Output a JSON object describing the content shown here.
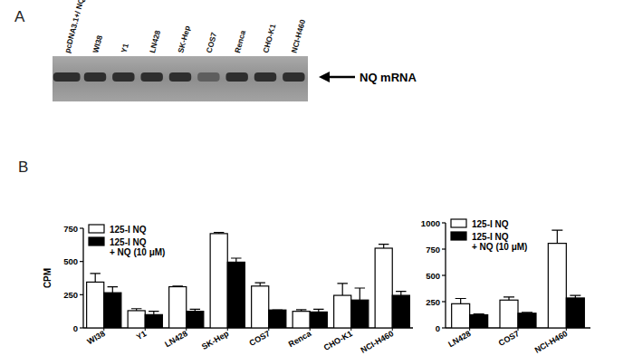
{
  "figure": {
    "panel_labels": [
      "A",
      "B"
    ],
    "gel": {
      "lanes": [
        "pcDNA3.1+/ NQ",
        "WI38",
        "Y1",
        "LN428",
        "SK-Hep",
        "COS7",
        "Renca",
        "CHO-K1",
        "NCI-H460"
      ],
      "band_label": "NQ mRNA"
    }
  },
  "chart_data": [
    {
      "type": "bar",
      "y_label": "CPM",
      "categories": [
        "WI38",
        "Y1",
        "LN428",
        "SK-Hep",
        "COS7",
        "Renca",
        "CHO-K1",
        "NCI-H460"
      ],
      "series": [
        {
          "name": "125-I NQ",
          "color": "#ffffff",
          "values": [
            345,
            130,
            310,
            710,
            315,
            125,
            245,
            600
          ],
          "errors": [
            65,
            15,
            5,
            8,
            25,
            12,
            90,
            30
          ]
        },
        {
          "name": "125-I NQ\n+ NQ (10 μM)",
          "color": "#000000",
          "values": [
            265,
            100,
            125,
            495,
            135,
            120,
            210,
            245
          ],
          "errors": [
            45,
            25,
            15,
            30,
            0,
            20,
            90,
            30
          ]
        }
      ],
      "ylim": [
        0,
        750
      ],
      "yticks": [
        0,
        250,
        500,
        750
      ],
      "legend": "upper left"
    },
    {
      "type": "bar",
      "categories": [
        "LN428",
        "COS7",
        "NCI-H460"
      ],
      "series": [
        {
          "name": "125-I NQ",
          "color": "#ffffff",
          "values": [
            230,
            265,
            805
          ],
          "errors": [
            50,
            30,
            125
          ]
        },
        {
          "name": "125-I NQ\n+ NQ (10 μM)",
          "color": "#000000",
          "values": [
            125,
            140,
            285
          ],
          "errors": [
            8,
            8,
            25
          ]
        }
      ],
      "ylim": [
        0,
        1000
      ],
      "yticks": [
        0,
        250,
        500,
        750,
        1000
      ],
      "legend": "upper left"
    }
  ]
}
